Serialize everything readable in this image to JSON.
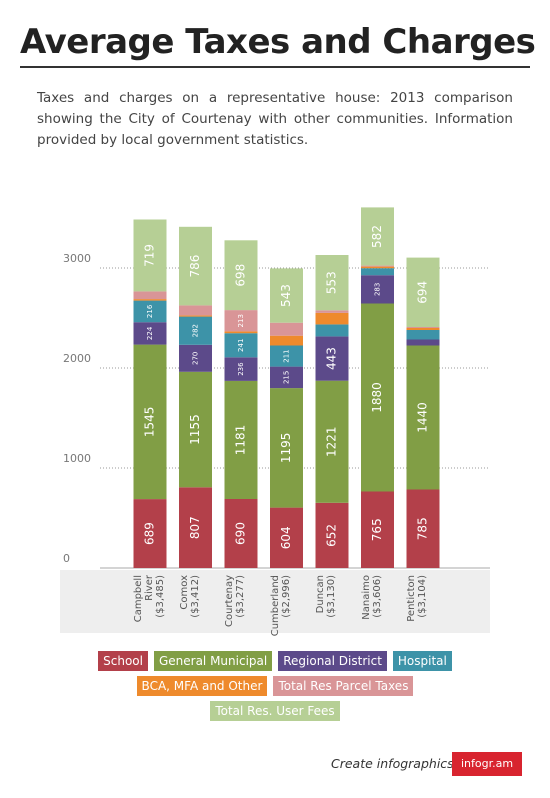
{
  "chart_data": {
    "type": "stacked-bar",
    "title": "Average Taxes and Charges",
    "subtitle": "Taxes and charges on a representative house: 2013 comparison showing the City of Courtenay with other communities. Information provided by local government statistics.",
    "categories": [
      "Campbell River ($3,485)",
      "Comox ($3,412)",
      "Courtenay ($3,277)",
      "Cumberland ($2,996)",
      "Duncan ($3,130)",
      "Nanaimo ($3,606)",
      "Penticton ($3,104)"
    ],
    "series": [
      {
        "name": "School",
        "color": "#b3404a",
        "values": [
          689,
          807,
          690,
          604,
          652,
          765,
          785
        ]
      },
      {
        "name": "General Municipal",
        "color": "#819e45",
        "values": [
          1545,
          1155,
          1181,
          1195,
          1221,
          1880,
          1440
        ]
      },
      {
        "name": "Regional District",
        "color": "#5c4a8a",
        "values": [
          224,
          270,
          236,
          215,
          443,
          283,
          60
        ]
      },
      {
        "name": "Hospital",
        "color": "#3d93a8",
        "values": [
          216,
          282,
          241,
          211,
          120,
          70,
          95
        ]
      },
      {
        "name": "BCA, MFA and Other",
        "color": "#ee8a2c",
        "values": [
          15,
          12,
          18,
          98,
          115,
          16,
          20
        ]
      },
      {
        "name": "Total Res Parcel Taxes",
        "color": "#d99597",
        "values": [
          77,
          100,
          213,
          130,
          26,
          10,
          10
        ]
      },
      {
        "name": "Total Res. User Fees",
        "color": "#b6cf95",
        "values": [
          719,
          786,
          698,
          543,
          553,
          582,
          694
        ]
      }
    ],
    "ylim": [
      0,
      3700
    ],
    "yticks": [
      0,
      1000,
      2000,
      3000
    ],
    "grid": true
  },
  "footer": {
    "text": "Create infographics",
    "brand": "infogr.am"
  }
}
